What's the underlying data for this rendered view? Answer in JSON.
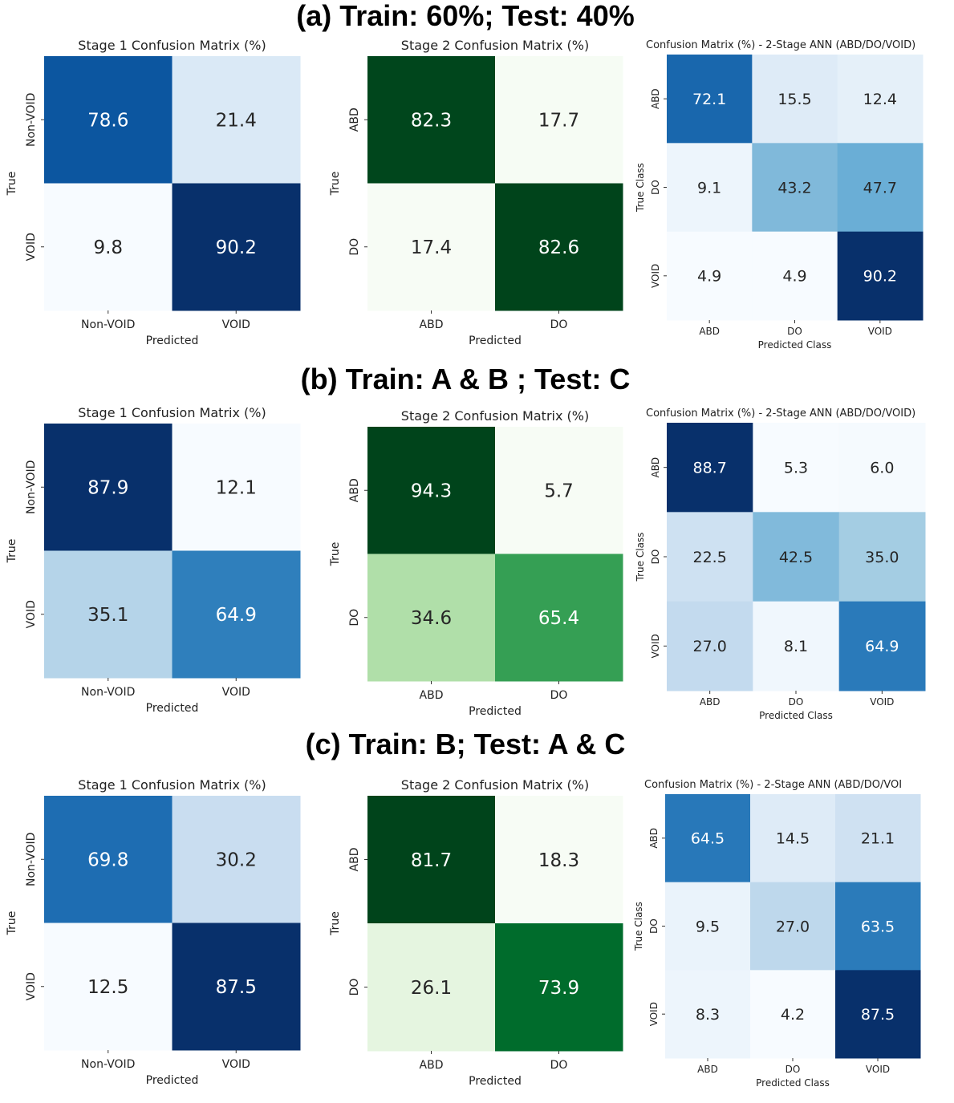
{
  "sections": [
    {
      "title": "(a) Train: 60%; Test: 40%"
    },
    {
      "title": "(b) Train: A & B ; Test: C"
    },
    {
      "title": "(c) Train: B; Test: A & C"
    }
  ],
  "chart_data": [
    {
      "type": "heatmap",
      "colormap": "Blues",
      "title": "Stage 1 Confusion Matrix (%)",
      "xlabel": "Predicted",
      "ylabel": "True",
      "x_categories": [
        "Non-VOID",
        "VOID"
      ],
      "y_categories": [
        "Non-VOID",
        "VOID"
      ],
      "values": [
        [
          78.6,
          21.4
        ],
        [
          9.8,
          90.2
        ]
      ],
      "cell_labels": [
        [
          "78.6",
          "21.4"
        ],
        [
          "9.8",
          "90.2"
        ]
      ]
    },
    {
      "type": "heatmap",
      "colormap": "Greens",
      "title": "Stage 2 Confusion Matrix (%)",
      "xlabel": "Predicted",
      "ylabel": "True",
      "x_categories": [
        "ABD",
        "DO"
      ],
      "y_categories": [
        "ABD",
        "DO"
      ],
      "values": [
        [
          82.3,
          17.7
        ],
        [
          17.4,
          82.6
        ]
      ],
      "cell_labels": [
        [
          "82.3",
          "17.7"
        ],
        [
          "17.4",
          "82.6"
        ]
      ]
    },
    {
      "type": "heatmap",
      "colormap": "Blues",
      "title": "Confusion Matrix (%) - 2-Stage ANN (ABD/DO/VOID)",
      "xlabel": "Predicted Class",
      "ylabel": "True Class",
      "x_categories": [
        "ABD",
        "DO",
        "VOID"
      ],
      "y_categories": [
        "ABD",
        "DO",
        "VOID"
      ],
      "values": [
        [
          72.1,
          15.5,
          12.4
        ],
        [
          9.1,
          43.2,
          47.7
        ],
        [
          4.9,
          4.9,
          90.2
        ]
      ],
      "cell_labels": [
        [
          "72.1",
          "15.5",
          "12.4"
        ],
        [
          "9.1",
          "43.2",
          "47.7"
        ],
        [
          "4.9",
          "4.9",
          "90.2"
        ]
      ]
    },
    {
      "type": "heatmap",
      "colormap": "Blues",
      "title": "Stage 1 Confusion Matrix (%)",
      "xlabel": "Predicted",
      "ylabel": "True",
      "x_categories": [
        "Non-VOID",
        "VOID"
      ],
      "y_categories": [
        "Non-VOID",
        "VOID"
      ],
      "values": [
        [
          87.9,
          12.1
        ],
        [
          35.1,
          64.9
        ]
      ],
      "cell_labels": [
        [
          "87.9",
          "12.1"
        ],
        [
          "35.1",
          "64.9"
        ]
      ]
    },
    {
      "type": "heatmap",
      "colormap": "Greens",
      "title": "Stage 2 Confusion Matrix (%)",
      "xlabel": "Predicted",
      "ylabel": "True",
      "x_categories": [
        "ABD",
        "DO"
      ],
      "y_categories": [
        "ABD",
        "DO"
      ],
      "values": [
        [
          94.3,
          5.7
        ],
        [
          34.6,
          65.4
        ]
      ],
      "cell_labels": [
        [
          "94.3",
          "5.7"
        ],
        [
          "34.6",
          "65.4"
        ]
      ]
    },
    {
      "type": "heatmap",
      "colormap": "Blues",
      "title": "Confusion Matrix (%) - 2-Stage ANN (ABD/DO/VOID)",
      "xlabel": "Predicted Class",
      "ylabel": "True Class",
      "x_categories": [
        "ABD",
        "DO",
        "VOID"
      ],
      "y_categories": [
        "ABD",
        "DO",
        "VOID"
      ],
      "values": [
        [
          88.7,
          5.3,
          6.0
        ],
        [
          22.5,
          42.5,
          35.0
        ],
        [
          27.0,
          8.1,
          64.9
        ]
      ],
      "cell_labels": [
        [
          "88.7",
          "5.3",
          "6.0"
        ],
        [
          "22.5",
          "42.5",
          "35.0"
        ],
        [
          "27.0",
          "8.1",
          "64.9"
        ]
      ]
    },
    {
      "type": "heatmap",
      "colormap": "Blues",
      "title": "Stage 1 Confusion Matrix (%)",
      "xlabel": "Predicted",
      "ylabel": "True",
      "x_categories": [
        "Non-VOID",
        "VOID"
      ],
      "y_categories": [
        "Non-VOID",
        "VOID"
      ],
      "values": [
        [
          69.8,
          30.2
        ],
        [
          12.5,
          87.5
        ]
      ],
      "cell_labels": [
        [
          "69.8",
          "30.2"
        ],
        [
          "12.5",
          "87.5"
        ]
      ]
    },
    {
      "type": "heatmap",
      "colormap": "Greens",
      "title": "Stage 2 Confusion Matrix (%)",
      "xlabel": "Predicted",
      "ylabel": "True",
      "x_categories": [
        "ABD",
        "DO"
      ],
      "y_categories": [
        "ABD",
        "DO"
      ],
      "values": [
        [
          81.7,
          18.3
        ],
        [
          26.1,
          73.9
        ]
      ],
      "cell_labels": [
        [
          "81.7",
          "18.3"
        ],
        [
          "26.1",
          "73.9"
        ]
      ]
    },
    {
      "type": "heatmap",
      "colormap": "Blues",
      "title": "Confusion Matrix (%) - 2-Stage ANN (ABD/DO/VOI",
      "xlabel": "Predicted Class",
      "ylabel": "True Class",
      "x_categories": [
        "ABD",
        "DO",
        "VOID"
      ],
      "y_categories": [
        "ABD",
        "DO",
        "VOID"
      ],
      "values": [
        [
          64.5,
          14.5,
          21.1
        ],
        [
          9.5,
          27.0,
          63.5
        ],
        [
          8.3,
          4.2,
          87.5
        ]
      ],
      "cell_labels": [
        [
          "64.5",
          "14.5",
          "21.1"
        ],
        [
          "9.5",
          "27.0",
          "63.5"
        ],
        [
          "8.3",
          "4.2",
          "87.5"
        ]
      ]
    }
  ]
}
